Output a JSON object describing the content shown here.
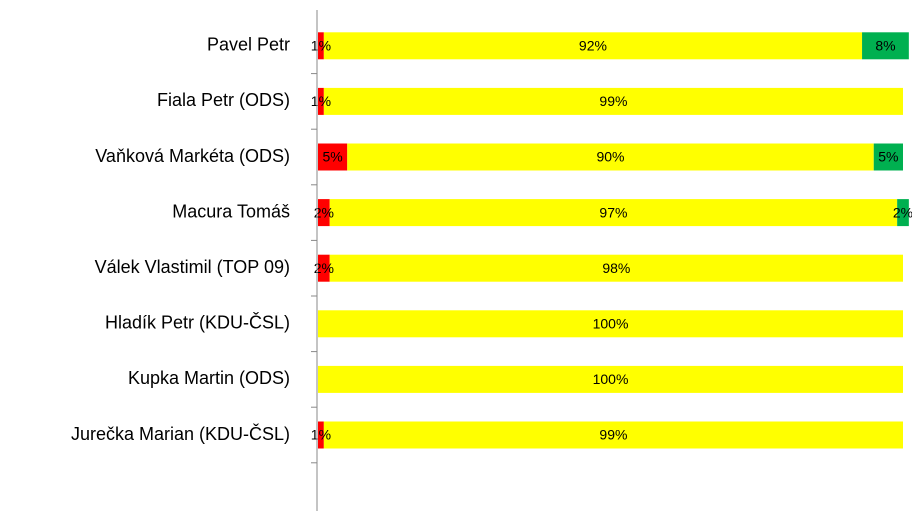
{
  "chart_data": {
    "type": "bar",
    "orientation": "horizontal",
    "stacked": true,
    "categories": [
      "Pavel Petr",
      "Fiala Petr (ODS)",
      "Vaňková Markéta (ODS)",
      "Macura Tomáš",
      "Válek Vlastimil (TOP 09)",
      "Hladík Petr (KDU-ČSL)",
      "Kupka Martin (ODS)",
      "Jurečka Marian (KDU-ČSL)"
    ],
    "series": [
      {
        "color": "#ff0000",
        "values": [
          1,
          1,
          5,
          2,
          2,
          null,
          null,
          1
        ],
        "value_labels": [
          "1%",
          "1%",
          "5%",
          "2%",
          "2%",
          null,
          null,
          "1%"
        ]
      },
      {
        "color": "#ffff00",
        "values": [
          92,
          99,
          90,
          97,
          98,
          100,
          100,
          99
        ],
        "value_labels": [
          "92%",
          "99%",
          "90%",
          "97%",
          "98%",
          "100%",
          "100%",
          "99%"
        ]
      },
      {
        "color": "#00b050",
        "values": [
          8,
          null,
          5,
          2,
          null,
          null,
          null,
          null
        ],
        "value_labels": [
          "8%",
          null,
          "5%",
          "2%",
          null,
          null,
          null,
          null
        ]
      }
    ],
    "xlim": [
      0,
      100
    ]
  }
}
